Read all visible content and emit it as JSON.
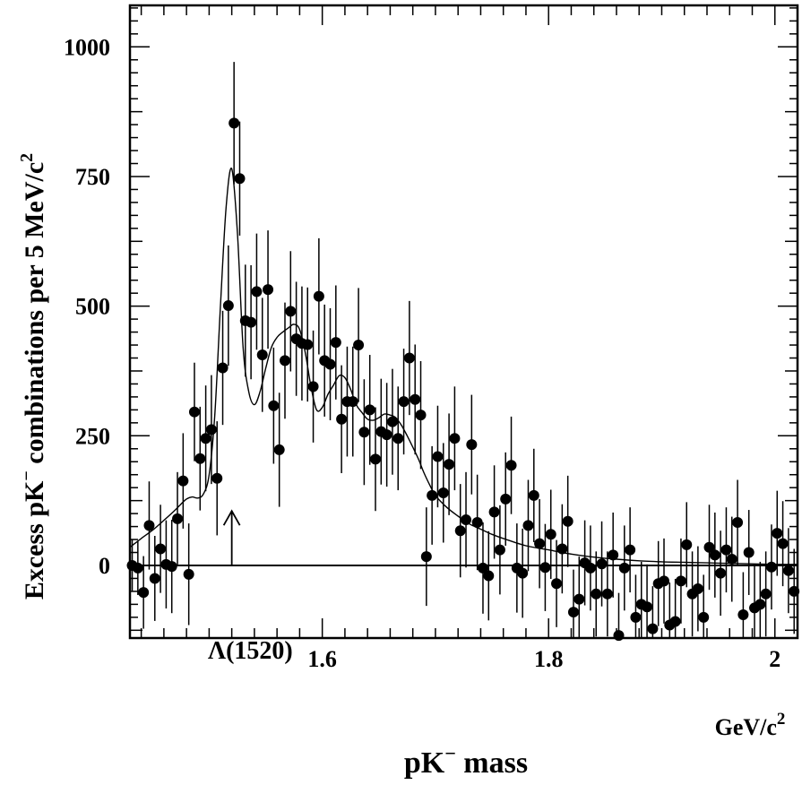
{
  "chart_data": {
    "type": "scatter",
    "title": "",
    "xlabel": {
      "main": "pK",
      "sup": "−",
      "rest": " mass"
    },
    "xunit": {
      "main": "GeV/c",
      "sup": "2"
    },
    "ylabel": {
      "main": "Excess pK",
      "sup": "−",
      "rest": " combinations per 5 MeV/c",
      "sup2": "2"
    },
    "xlim": [
      1.43,
      2.02
    ],
    "ylim": [
      -140,
      1080
    ],
    "xticks": [
      1.6,
      1.8,
      2.0
    ],
    "xtick_labels": [
      "1.6",
      "1.8",
      "2"
    ],
    "yticks": [
      0,
      250,
      500,
      750,
      1000
    ],
    "ytick_labels": [
      "0",
      "250",
      "500",
      "750",
      "1000"
    ],
    "grid": false,
    "zero_line": true,
    "annotation": {
      "text": "Λ(1520)",
      "x": 1.52,
      "arrow_from_y": 0,
      "arrow_to_y": 105
    },
    "series": [
      {
        "kind": "points_with_errors",
        "x": [
          1.432,
          1.437,
          1.442,
          1.447,
          1.452,
          1.457,
          1.462,
          1.467,
          1.472,
          1.477,
          1.482,
          1.487,
          1.492,
          1.497,
          1.502,
          1.507,
          1.512,
          1.517,
          1.522,
          1.527,
          1.532,
          1.537,
          1.542,
          1.547,
          1.552,
          1.557,
          1.562,
          1.567,
          1.572,
          1.577,
          1.582,
          1.587,
          1.592,
          1.597,
          1.602,
          1.607,
          1.612,
          1.617,
          1.622,
          1.627,
          1.632,
          1.637,
          1.642,
          1.647,
          1.652,
          1.657,
          1.662,
          1.667,
          1.672,
          1.677,
          1.682,
          1.687,
          1.692,
          1.697,
          1.702,
          1.707,
          1.712,
          1.717,
          1.722,
          1.727,
          1.732,
          1.737,
          1.742,
          1.747,
          1.752,
          1.757,
          1.762,
          1.767,
          1.772,
          1.777,
          1.782,
          1.787,
          1.792,
          1.797,
          1.802,
          1.807,
          1.812,
          1.817,
          1.822,
          1.827,
          1.832,
          1.837,
          1.842,
          1.847,
          1.852,
          1.857,
          1.862,
          1.867,
          1.872,
          1.877,
          1.882,
          1.887,
          1.892,
          1.897,
          1.902,
          1.907,
          1.912,
          1.917,
          1.922,
          1.927,
          1.932,
          1.937,
          1.942,
          1.947,
          1.952,
          1.957,
          1.962,
          1.967,
          1.972,
          1.977,
          1.982,
          1.987,
          1.992,
          1.997,
          2.002,
          2.007,
          2.012,
          2.017
        ],
        "y": [
          0,
          -5,
          -52,
          77,
          -25,
          32,
          2,
          -2,
          90,
          163,
          -17,
          296,
          206,
          245,
          262,
          168,
          381,
          501,
          853,
          746,
          472,
          469,
          528,
          406,
          532,
          308,
          223,
          395,
          490,
          437,
          428,
          426,
          345,
          519,
          395,
          388,
          430,
          282,
          316,
          316,
          425,
          257,
          300,
          205,
          258,
          252,
          277,
          245,
          316,
          400,
          320,
          290,
          17,
          135,
          210,
          140,
          195,
          245,
          67,
          88,
          233,
          83,
          -5,
          -20,
          103,
          30,
          128,
          193,
          -5,
          -15,
          77,
          135,
          42,
          -4,
          60,
          -35,
          32,
          85,
          -90,
          -65,
          5,
          -5,
          -55,
          3,
          -55,
          20,
          -135,
          -5,
          30,
          -100,
          -75,
          -80,
          -122,
          -35,
          -30,
          -115,
          -108,
          -30,
          40,
          -55,
          -45,
          -100,
          35,
          20,
          -15,
          30,
          12,
          83,
          -95,
          25,
          -82,
          -75,
          -55,
          -3,
          62,
          42,
          -10,
          -50
        ],
        "err": [
          50,
          52,
          70,
          85,
          82,
          85,
          85,
          90,
          90,
          92,
          98,
          95,
          100,
          102,
          105,
          110,
          110,
          116,
          118,
          110,
          108,
          110,
          112,
          110,
          114,
          112,
          110,
          112,
          116,
          110,
          110,
          110,
          108,
          112,
          108,
          108,
          110,
          104,
          106,
          106,
          110,
          102,
          106,
          100,
          102,
          100,
          102,
          100,
          102,
          110,
          106,
          104,
          95,
          95,
          98,
          96,
          98,
          100,
          90,
          92,
          96,
          92,
          88,
          86,
          90,
          86,
          90,
          94,
          86,
          86,
          88,
          90,
          86,
          84,
          86,
          84,
          86,
          88,
          82,
          82,
          82,
          82,
          82,
          82,
          82,
          82,
          82,
          82,
          82,
          82,
          82,
          82,
          82,
          82,
          82,
          82,
          82,
          82,
          82,
          82,
          82,
          82,
          82,
          82,
          82,
          82,
          82,
          82,
          82,
          82,
          82,
          82,
          82,
          82,
          82,
          82,
          82,
          82
        ]
      },
      {
        "kind": "fit_curve",
        "x": [
          1.43,
          1.44,
          1.45,
          1.46,
          1.47,
          1.475,
          1.48,
          1.485,
          1.49,
          1.495,
          1.5,
          1.505,
          1.51,
          1.515,
          1.52,
          1.525,
          1.53,
          1.535,
          1.54,
          1.545,
          1.55,
          1.555,
          1.56,
          1.565,
          1.57,
          1.575,
          1.58,
          1.585,
          1.59,
          1.595,
          1.6,
          1.605,
          1.61,
          1.615,
          1.62,
          1.625,
          1.63,
          1.635,
          1.64,
          1.645,
          1.65,
          1.655,
          1.66,
          1.665,
          1.67,
          1.675,
          1.68,
          1.685,
          1.69,
          1.695,
          1.7,
          1.71,
          1.72,
          1.73,
          1.74,
          1.75,
          1.76,
          1.78,
          1.8,
          1.82,
          1.84,
          1.86,
          1.88,
          1.9,
          1.92,
          1.94,
          1.96,
          1.98,
          2.0,
          2.02
        ],
        "y": [
          35,
          52,
          68,
          87,
          107,
          118,
          128,
          132,
          130,
          138,
          175,
          290,
          500,
          690,
          765,
          640,
          420,
          335,
          310,
          335,
          380,
          420,
          440,
          450,
          458,
          465,
          455,
          410,
          345,
          300,
          305,
          330,
          348,
          366,
          362,
          340,
          310,
          295,
          282,
          280,
          285,
          292,
          290,
          285,
          270,
          250,
          228,
          205,
          178,
          155,
          135,
          112,
          95,
          80,
          70,
          60,
          52,
          38,
          30,
          22,
          16,
          12,
          9,
          7,
          6,
          5,
          4,
          3,
          2,
          2
        ]
      }
    ]
  }
}
